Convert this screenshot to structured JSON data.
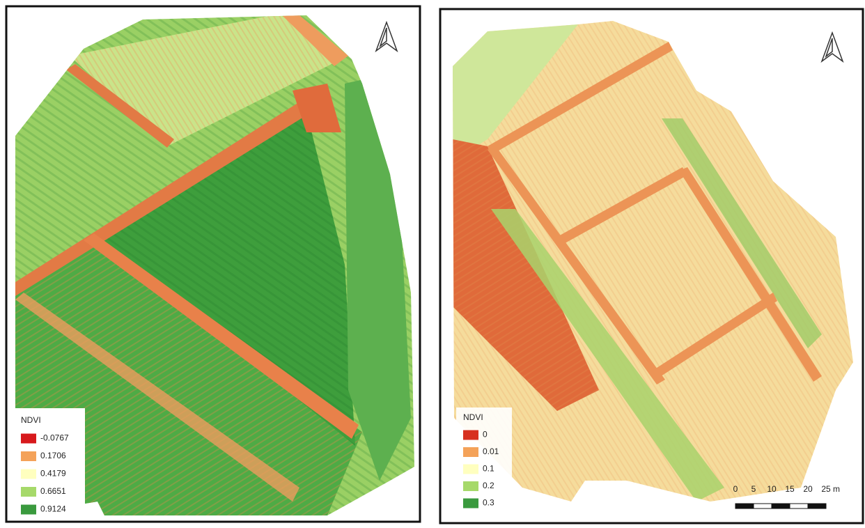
{
  "panels": [
    {
      "legend": {
        "title": "NDVI",
        "items": [
          {
            "label": "-0.0767",
            "color": "#d7191c"
          },
          {
            "label": "0.1706",
            "color": "#f4a259"
          },
          {
            "label": "0.4179",
            "color": "#ffffbf"
          },
          {
            "label": "0.6651",
            "color": "#a6d96a"
          },
          {
            "label": "0.9124",
            "color": "#3a9a3e"
          }
        ]
      }
    },
    {
      "legend": {
        "title": "NDVI",
        "items": [
          {
            "label": "0",
            "color": "#d7301f"
          },
          {
            "label": "0.01",
            "color": "#f4a259"
          },
          {
            "label": "0.1",
            "color": "#ffffbf"
          },
          {
            "label": "0.2",
            "color": "#a6d96a"
          },
          {
            "label": "0.3",
            "color": "#3a9a3e"
          }
        ]
      },
      "scale_bar": {
        "labels": [
          "0",
          "5",
          "10",
          "15",
          "20",
          "25"
        ],
        "unit": "m"
      }
    }
  ]
}
